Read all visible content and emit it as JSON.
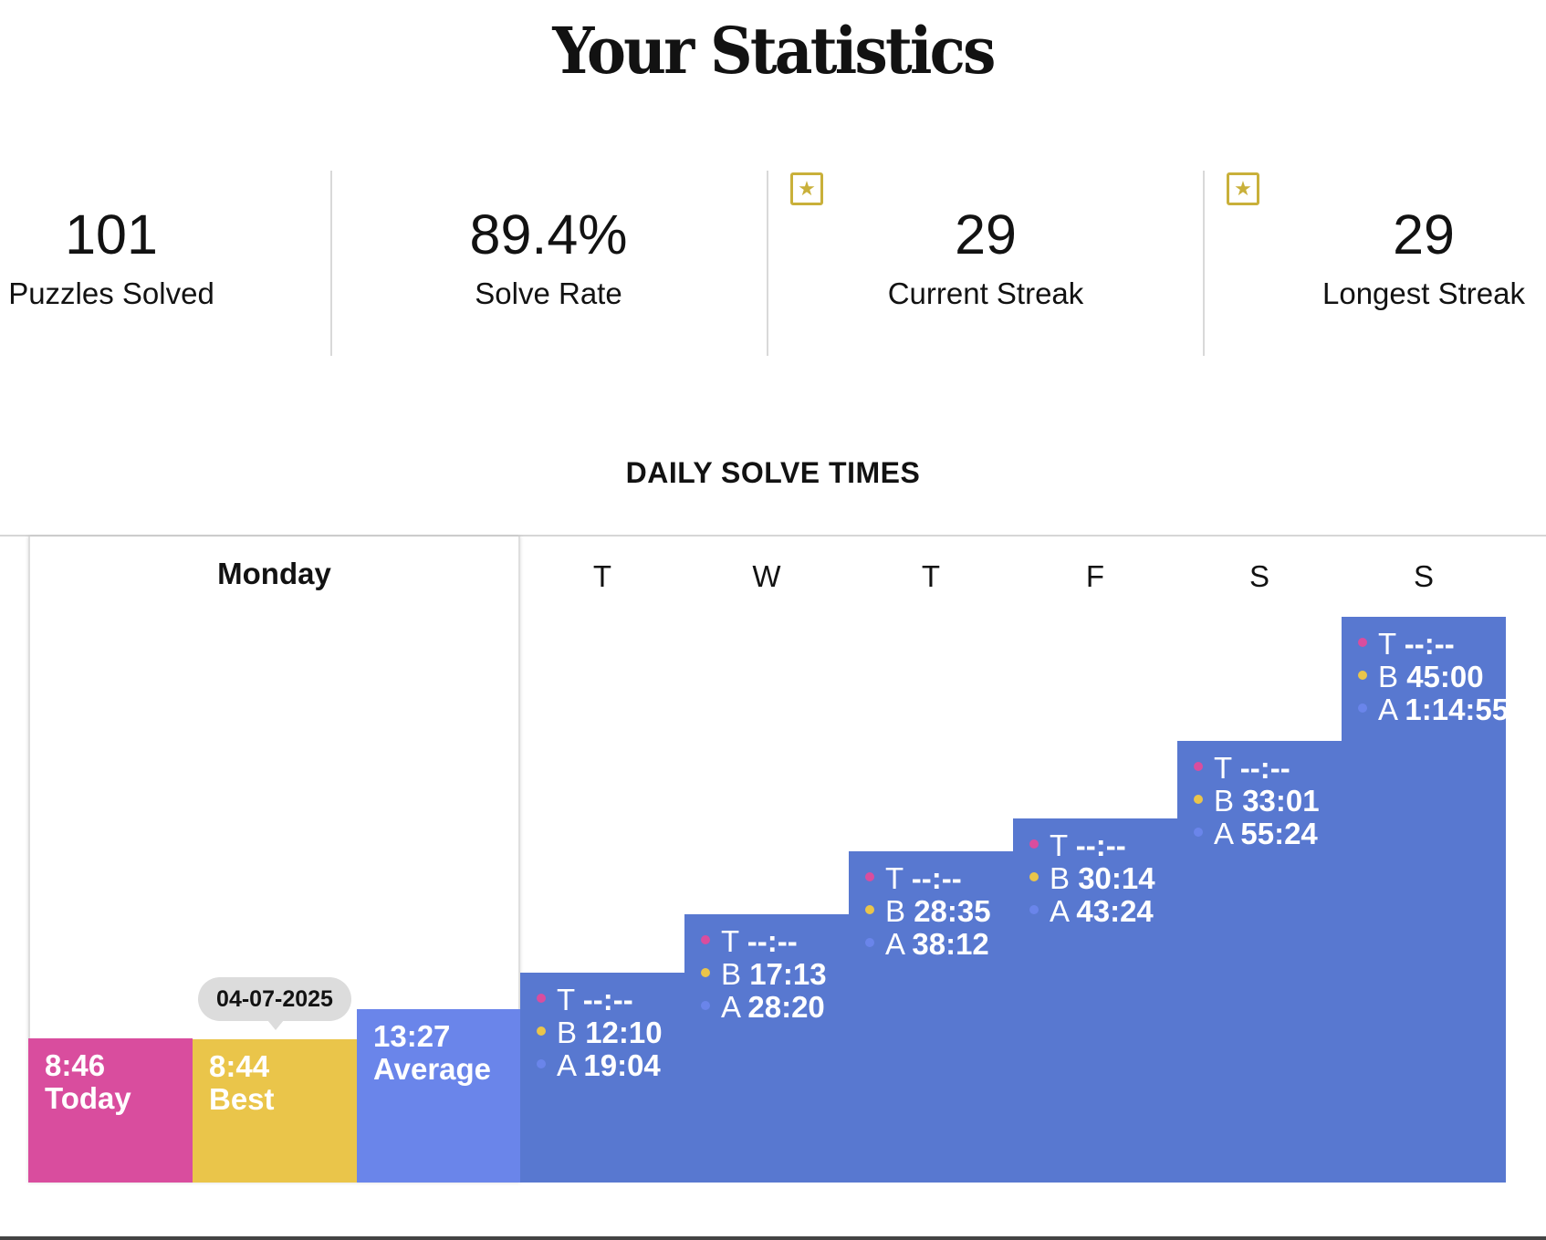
{
  "header": {
    "title": "Your Statistics"
  },
  "stats": [
    {
      "value": "101",
      "label": "Puzzles Solved",
      "starred": false
    },
    {
      "value": "89.4%",
      "label": "Solve Rate",
      "starred": false
    },
    {
      "value": "29",
      "label": "Current Streak",
      "starred": true
    },
    {
      "value": "29",
      "label": "Longest Streak",
      "starred": true
    }
  ],
  "section": {
    "heading": "DAILY SOLVE TIMES"
  },
  "monday": {
    "title": "Monday",
    "today": {
      "time": "8:46",
      "label": "Today"
    },
    "best": {
      "time": "8:44",
      "label": "Best",
      "date": "04-07-2025"
    },
    "average": {
      "time": "13:27",
      "label": "Average"
    }
  },
  "week": [
    {
      "day": "T",
      "today": "--:--",
      "best": "12:10",
      "average": "19:04"
    },
    {
      "day": "W",
      "today": "--:--",
      "best": "17:13",
      "average": "28:20"
    },
    {
      "day": "T",
      "today": "--:--",
      "best": "28:35",
      "average": "38:12"
    },
    {
      "day": "F",
      "today": "--:--",
      "best": "30:14",
      "average": "43:24"
    },
    {
      "day": "S",
      "today": "--:--",
      "best": "33:01",
      "average": "55:24"
    },
    {
      "day": "S",
      "today": "--:--",
      "best": "45:00",
      "average": "1:14:55"
    }
  ],
  "row_prefixes": {
    "today": "T",
    "best": "B",
    "average": "A"
  },
  "colors": {
    "today": "#d94d9e",
    "best": "#eac54a",
    "average_monday": "#6a85ea",
    "week_bars": "#5878d0",
    "star": "#c9b03a"
  },
  "icons": {
    "streak": "star-badge-icon"
  }
}
